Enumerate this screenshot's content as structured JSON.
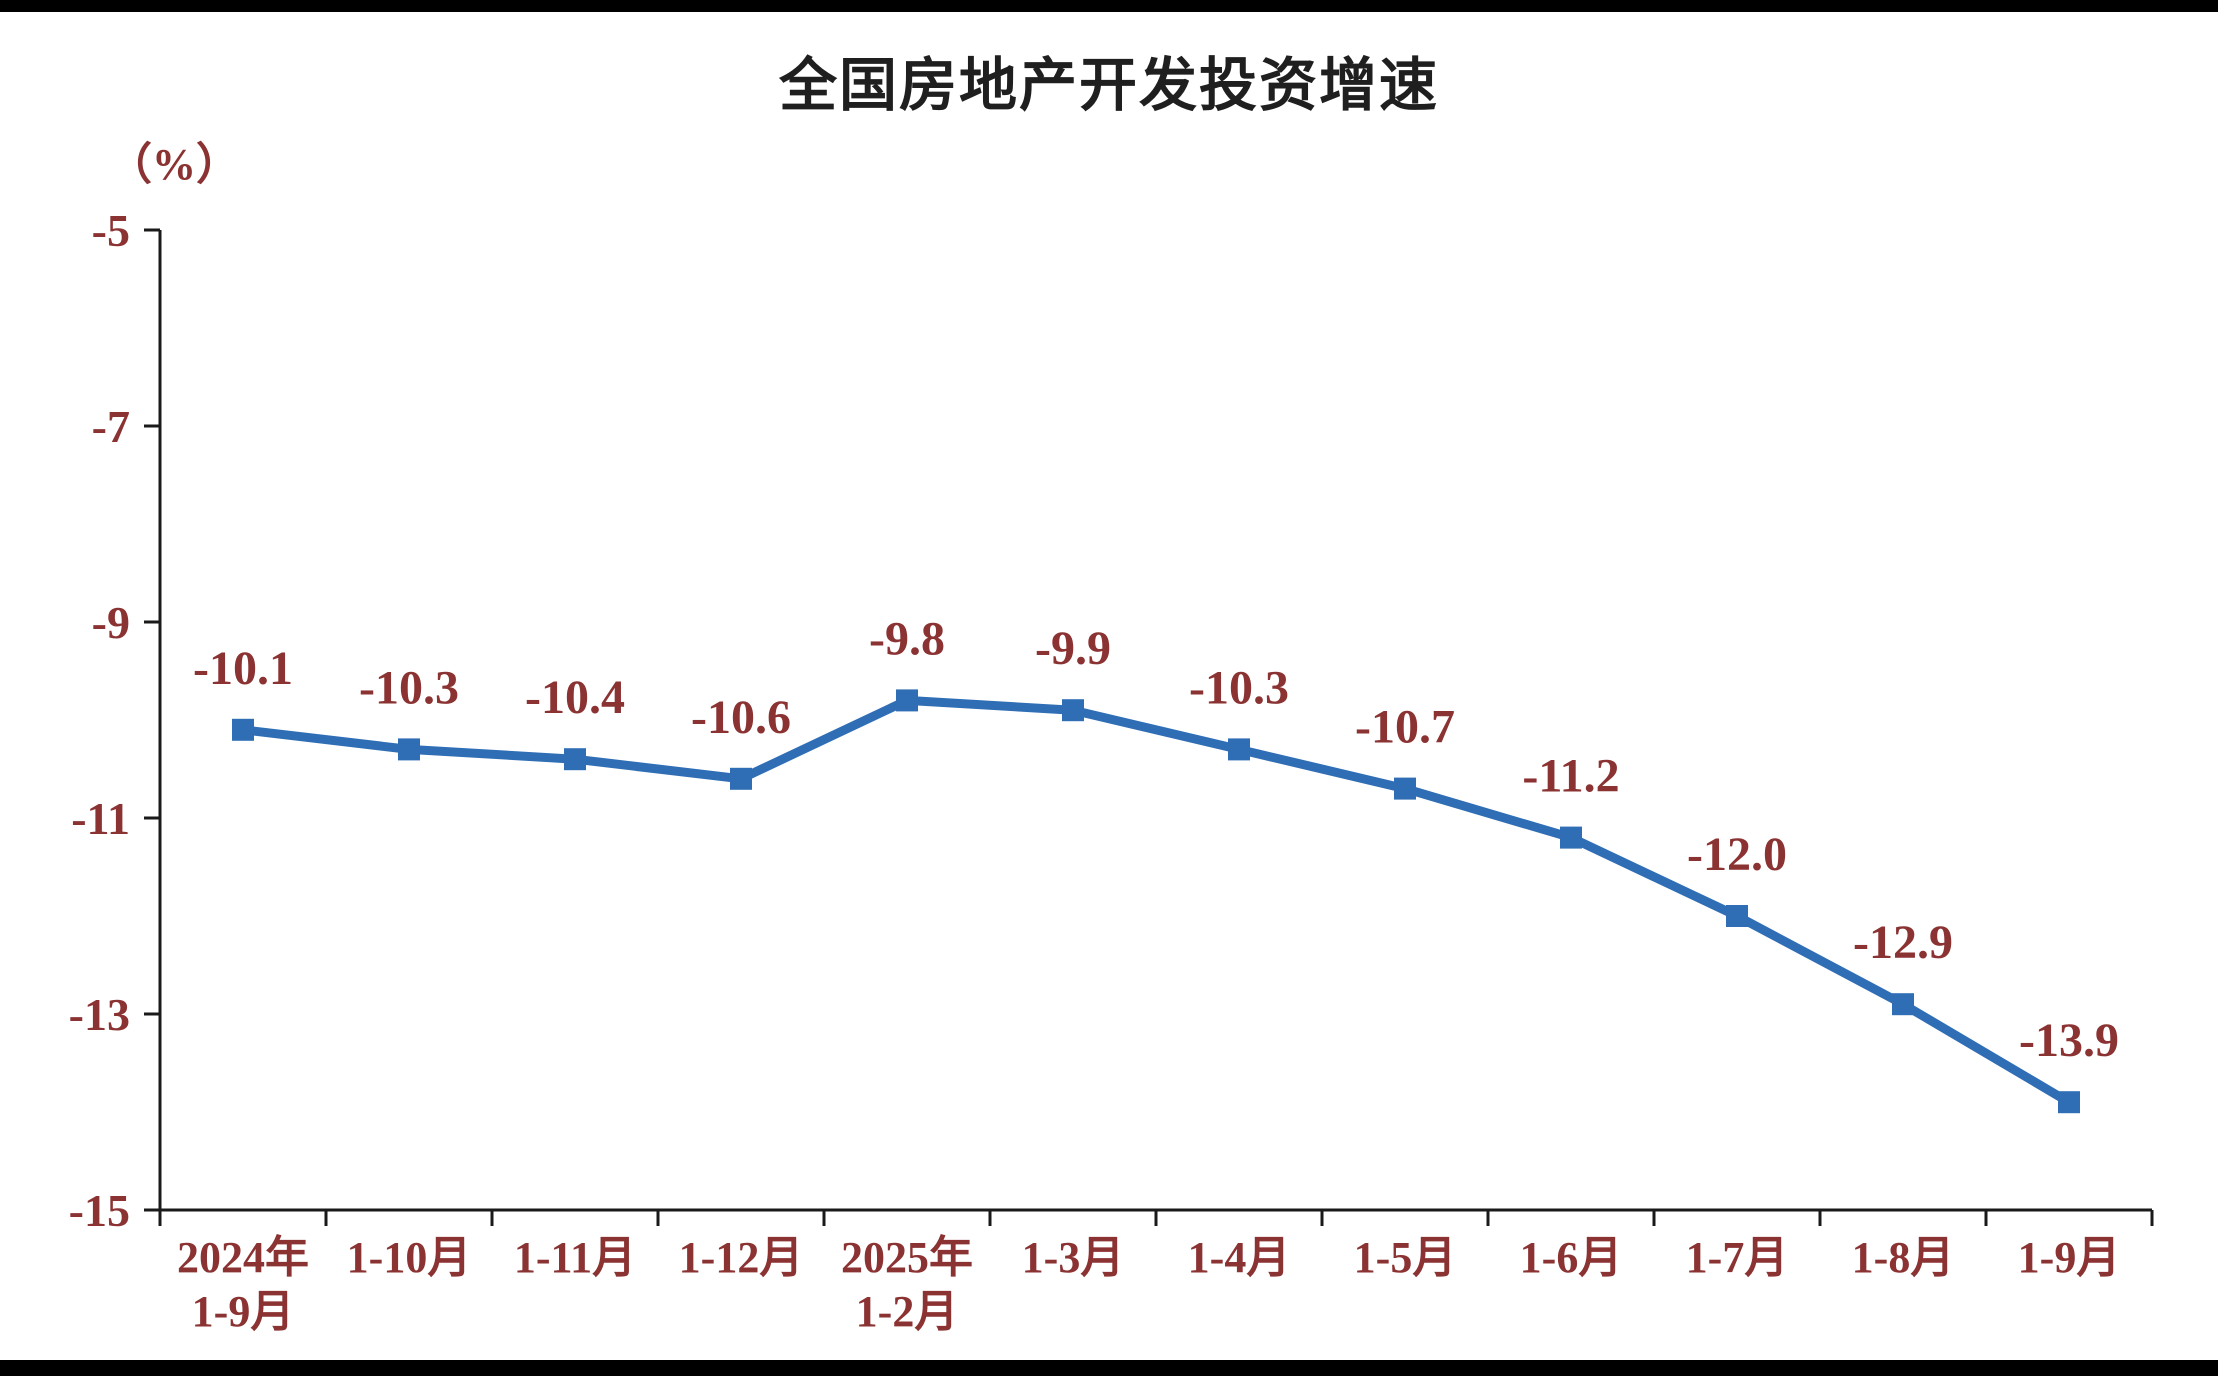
{
  "page": {
    "title": "全国房地产开发投资增速",
    "unit_label": "（%）"
  },
  "chart_data": {
    "type": "line",
    "title": "全国房地产开发投资增速",
    "ylabel": "（%）",
    "xlabel": "",
    "categories": [
      "2024年\n1-9月",
      "1-10月",
      "1-11月",
      "1-12月",
      "2025年\n1-2月",
      "1-3月",
      "1-4月",
      "1-5月",
      "1-6月",
      "1-7月",
      "1-8月",
      "1-9月"
    ],
    "values": [
      -10.1,
      -10.3,
      -10.4,
      -10.6,
      -9.8,
      -9.9,
      -10.3,
      -10.7,
      -11.2,
      -12.0,
      -12.9,
      -13.9
    ],
    "data_labels": [
      "-10.1",
      "-10.3",
      "-10.4",
      "-10.6",
      "-9.8",
      "-9.9",
      "-10.3",
      "-10.7",
      "-11.2",
      "-12.0",
      "-12.9",
      "-13.9"
    ],
    "ylim": [
      -15,
      -5
    ],
    "yticks": [
      -5,
      -7,
      -9,
      -11,
      -13,
      -15
    ],
    "grid": false,
    "legend_position": "none",
    "colors": {
      "line": "#2f6eb5",
      "marker": "#2f6eb5",
      "axis": "#1a1a1a",
      "text": "#8b3232",
      "title": "#1f1f1f"
    }
  }
}
